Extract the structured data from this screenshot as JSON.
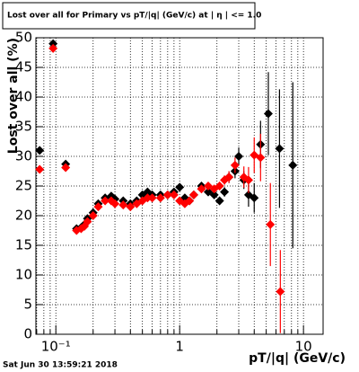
{
  "chart_data": {
    "type": "scatter",
    "title": "Lost over all for Primary vs pT/|q| (GeV/c) at | η | <= 1.0",
    "x_label": "pT/|q| (GeV/c)",
    "y_label": "Lost over all (%)",
    "timestamp": "Sat Jun 30 13:59:21 2018",
    "x_log": true,
    "grid": true,
    "xlim": [
      0.069,
      14.4
    ],
    "ylim": [
      0,
      50
    ],
    "xticks": [
      {
        "value": 0.1,
        "label": "10⁻¹"
      },
      1,
      10
    ],
    "xminorticks": [
      0.07,
      0.08,
      0.09,
      0.2,
      0.3,
      0.4,
      0.5,
      0.6,
      0.7,
      0.8,
      0.9,
      2,
      3,
      4,
      5,
      6,
      7,
      8,
      9
    ],
    "yticks": [
      0,
      5,
      10,
      15,
      20,
      25,
      30,
      35,
      40,
      45,
      50
    ],
    "series": [
      {
        "name": "Black",
        "color": "#000000",
        "x": [
          0.074,
          0.095,
          0.12,
          0.147,
          0.16,
          0.17,
          0.18,
          0.2,
          0.22,
          0.25,
          0.28,
          0.3,
          0.35,
          0.4,
          0.45,
          0.5,
          0.55,
          0.6,
          0.7,
          0.8,
          0.9,
          1.0,
          1.1,
          1.2,
          1.3,
          1.5,
          1.7,
          1.9,
          2.1,
          2.3,
          2.5,
          2.8,
          3.0,
          3.3,
          3.6,
          4.0,
          4.5,
          5.2,
          6.4,
          8.2
        ],
        "values": [
          31,
          49,
          28.7,
          17.8,
          18,
          18.5,
          19.5,
          20.5,
          22,
          23,
          23.3,
          22.8,
          22.5,
          22,
          22.5,
          23.5,
          24,
          23.5,
          23.5,
          23.5,
          24,
          24.8,
          23,
          22.5,
          23.5,
          25,
          24,
          23.5,
          22.5,
          24,
          26.5,
          27.5,
          30,
          26,
          23.5,
          23,
          32,
          37.2,
          31.3,
          28.5
        ],
        "errors": [
          0.6,
          0.6,
          0.6,
          0.3,
          0.3,
          0.3,
          0.3,
          0.3,
          0.3,
          0.3,
          0.3,
          0.3,
          0.3,
          0.3,
          0.3,
          0.3,
          0.3,
          0.3,
          0.3,
          0.3,
          0.4,
          0.4,
          0.4,
          0.4,
          0.5,
          0.5,
          0.6,
          0.6,
          0.7,
          0.8,
          1,
          1.2,
          1.5,
          1.5,
          2,
          2.5,
          4,
          7,
          10,
          14
        ]
      },
      {
        "name": "Red",
        "color": "#ff0000",
        "x": [
          0.074,
          0.095,
          0.12,
          0.147,
          0.16,
          0.17,
          0.18,
          0.2,
          0.22,
          0.25,
          0.28,
          0.3,
          0.35,
          0.4,
          0.45,
          0.5,
          0.55,
          0.6,
          0.7,
          0.8,
          0.9,
          1.0,
          1.1,
          1.2,
          1.3,
          1.5,
          1.7,
          1.9,
          2.1,
          2.3,
          2.5,
          2.8,
          3.3,
          3.6,
          4.0,
          4.5,
          5.4,
          6.5
        ],
        "values": [
          27.8,
          48.2,
          28.1,
          17.5,
          17.8,
          18.2,
          19,
          20,
          21.5,
          22.5,
          22.5,
          22,
          21.8,
          21.5,
          22,
          22.5,
          23,
          23,
          23,
          23.5,
          23.5,
          22.5,
          22,
          22.5,
          23.5,
          24.5,
          25,
          24.5,
          25,
          26,
          26.5,
          28.5,
          26.5,
          26,
          30.2,
          29.8,
          18.5,
          7.2
        ],
        "errors": [
          0.6,
          0.6,
          0.6,
          0.3,
          0.3,
          0.3,
          0.3,
          0.3,
          0.3,
          0.3,
          0.3,
          0.3,
          0.3,
          0.3,
          0.3,
          0.3,
          0.3,
          0.3,
          0.3,
          0.3,
          0.4,
          0.4,
          0.4,
          0.4,
          0.5,
          0.5,
          0.6,
          0.6,
          0.7,
          0.8,
          1,
          1.3,
          1.8,
          2.2,
          3,
          4,
          7,
          7
        ]
      }
    ]
  }
}
